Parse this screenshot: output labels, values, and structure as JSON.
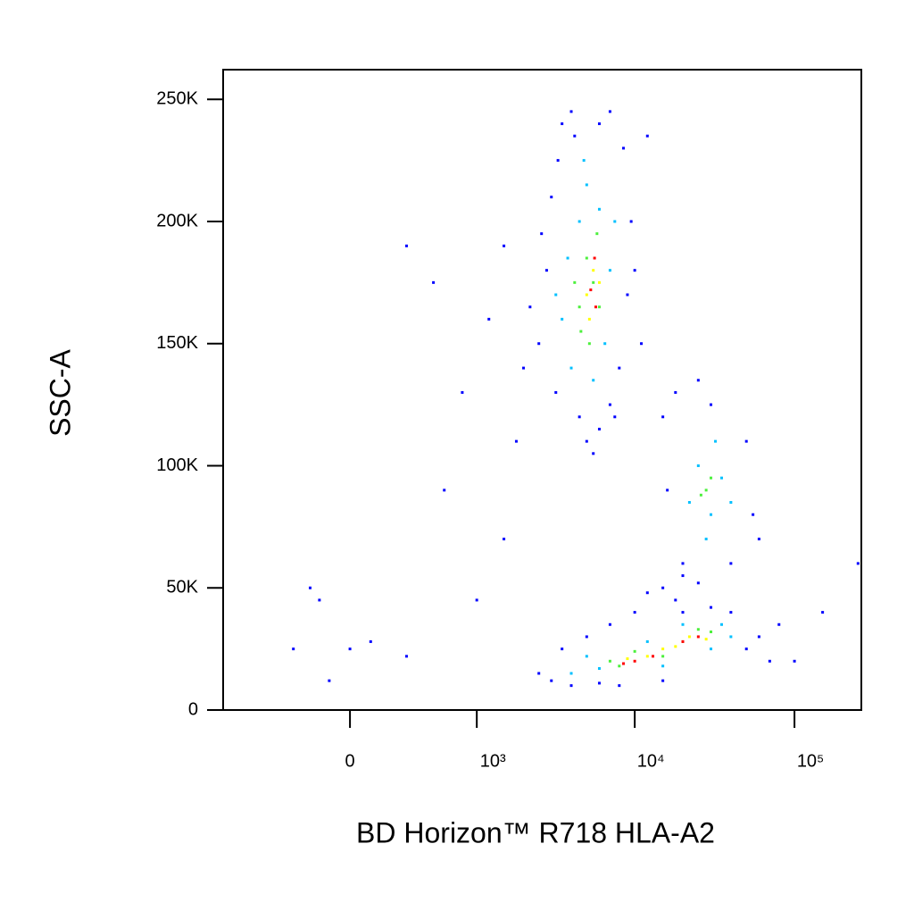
{
  "chart_data": {
    "type": "scatter",
    "x_label": "BD Horizon™ R718 HLA-A2",
    "y_label": "SSC-A",
    "xscale": "biexponential",
    "xlim": [
      -1000,
      262144
    ],
    "ylim": [
      0,
      262144
    ],
    "xticks": [
      0,
      {
        "value": 1000,
        "label": "10³"
      },
      {
        "value": 10000,
        "label": "10⁴"
      },
      {
        "value": 100000,
        "label": "10⁵"
      }
    ],
    "yticks": [
      0,
      {
        "value": 50000,
        "label": "50K"
      },
      {
        "value": 100000,
        "label": "100K"
      },
      {
        "value": 150000,
        "label": "150K"
      },
      {
        "value": 200000,
        "label": "200K"
      },
      {
        "value": 250000,
        "label": "250K"
      }
    ],
    "series": [
      {
        "color": "#0000ff",
        "x": [
          2500,
          2800,
          3000,
          3200,
          3500,
          4000,
          4500,
          5000,
          6000,
          7000,
          8000,
          9000,
          9500,
          8500,
          7000,
          6000,
          2200,
          2600,
          3300,
          4200,
          10000,
          11000,
          2000,
          1500,
          1200,
          800,
          500,
          300,
          1800,
          5500,
          7500,
          12000,
          15000,
          18000,
          20000,
          40000,
          55000,
          50000,
          30000,
          16000,
          60000,
          25000,
          15000,
          18000,
          20000,
          12000,
          10000,
          25000,
          2500,
          3000,
          4000,
          6000,
          8000,
          3500,
          5000,
          7000,
          50000,
          60000,
          70000,
          40000,
          30000,
          20000,
          15000,
          80000,
          -200,
          -150,
          -300,
          -100,
          0,
          100,
          300,
          1500,
          600,
          1000,
          150000,
          250000,
          100000
        ],
        "values": [
          150000,
          180000,
          210000,
          130000,
          240000,
          245000,
          120000,
          110000,
          115000,
          125000,
          140000,
          170000,
          200000,
          230000,
          245000,
          240000,
          165000,
          195000,
          225000,
          235000,
          180000,
          150000,
          140000,
          190000,
          160000,
          130000,
          175000,
          190000,
          110000,
          105000,
          120000,
          235000,
          120000,
          130000,
          60000,
          60000,
          80000,
          110000,
          125000,
          90000,
          70000,
          135000,
          50000,
          45000,
          55000,
          48000,
          40000,
          52000,
          15000,
          12000,
          10000,
          11000,
          10000,
          25000,
          30000,
          35000,
          25000,
          30000,
          20000,
          40000,
          42000,
          40000,
          12000,
          35000,
          50000,
          45000,
          25000,
          12000,
          25000,
          28000,
          22000,
          70000,
          90000,
          45000,
          40000,
          60000,
          20000
        ]
      },
      {
        "color": "#00c0ff",
        "x": [
          3500,
          4000,
          4500,
          5000,
          6000,
          6500,
          7000,
          3800,
          5500,
          4800,
          7500,
          3200,
          25000,
          30000,
          35000,
          22000,
          40000,
          28000,
          32000,
          4000,
          5000,
          15000,
          30000,
          35000,
          40000,
          20000,
          12000,
          6000
        ],
        "values": [
          160000,
          140000,
          200000,
          215000,
          205000,
          150000,
          180000,
          185000,
          135000,
          225000,
          200000,
          170000,
          100000,
          80000,
          95000,
          85000,
          85000,
          70000,
          110000,
          15000,
          22000,
          18000,
          25000,
          35000,
          30000,
          35000,
          28000,
          17000
        ]
      },
      {
        "color": "#4cf03c",
        "x": [
          4500,
          5000,
          5500,
          4200,
          6000,
          5200,
          5800,
          4600,
          28000,
          30000,
          26000,
          8000,
          10000,
          20000,
          25000,
          15000,
          30000,
          7000
        ],
        "values": [
          165000,
          185000,
          175000,
          175000,
          165000,
          150000,
          195000,
          155000,
          90000,
          95000,
          88000,
          18000,
          24000,
          28000,
          33000,
          22000,
          32000,
          20000
        ]
      },
      {
        "color": "#ffff00",
        "x": [
          5000,
          5500,
          5200,
          6000,
          9000,
          12000,
          18000,
          22000,
          28000,
          15000
        ],
        "values": [
          170000,
          180000,
          160000,
          175000,
          21000,
          22000,
          26000,
          30000,
          29000,
          25000
        ]
      },
      {
        "color": "#ff0000",
        "x": [
          5300,
          5700,
          5600,
          10000,
          8500,
          20000,
          25000,
          13000
        ],
        "values": [
          172000,
          165000,
          185000,
          20000,
          19000,
          28000,
          30000,
          22000
        ]
      }
    ]
  }
}
